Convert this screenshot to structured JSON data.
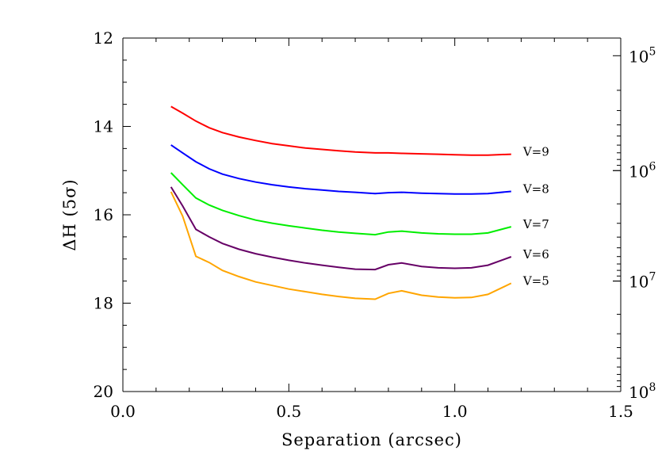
{
  "chart_data": {
    "type": "line",
    "xlabel": "Separation (arcsec)",
    "ylabel": "ΔH (5σ)",
    "xlim": [
      0.0,
      1.5
    ],
    "ylim": [
      12,
      20
    ],
    "y_inverted": true,
    "xticks": [
      "0.0",
      "0.5",
      "1.0",
      "1.5"
    ],
    "yticks": [
      "12",
      "14",
      "16",
      "18",
      "20"
    ],
    "right_axis": {
      "scale": "log",
      "tick_labels": [
        {
          "y": 12.4,
          "base": "10",
          "exp": "5"
        },
        {
          "y": 15.0,
          "base": "10",
          "exp": "6"
        },
        {
          "y": 17.5,
          "base": "10",
          "exp": "7"
        },
        {
          "y": 20.0,
          "base": "10",
          "exp": "8"
        }
      ]
    },
    "grid": false,
    "series": [
      {
        "name": "V=9",
        "color": "#ff0000",
        "x": [
          0.145,
          0.18,
          0.22,
          0.26,
          0.3,
          0.35,
          0.4,
          0.45,
          0.5,
          0.55,
          0.6,
          0.65,
          0.7,
          0.76,
          0.8,
          0.84,
          0.9,
          0.95,
          1.0,
          1.05,
          1.1,
          1.17
        ],
        "y": [
          13.55,
          13.7,
          13.88,
          14.03,
          14.14,
          14.24,
          14.32,
          14.39,
          14.44,
          14.49,
          14.52,
          14.55,
          14.58,
          14.6,
          14.6,
          14.61,
          14.62,
          14.63,
          14.64,
          14.65,
          14.65,
          14.63
        ]
      },
      {
        "name": "V=8",
        "color": "#0000ff",
        "x": [
          0.145,
          0.18,
          0.22,
          0.26,
          0.3,
          0.35,
          0.4,
          0.45,
          0.5,
          0.55,
          0.6,
          0.65,
          0.7,
          0.76,
          0.8,
          0.84,
          0.9,
          0.95,
          1.0,
          1.05,
          1.1,
          1.17
        ],
        "y": [
          14.42,
          14.6,
          14.8,
          14.96,
          15.08,
          15.18,
          15.26,
          15.32,
          15.37,
          15.41,
          15.44,
          15.47,
          15.49,
          15.52,
          15.5,
          15.49,
          15.51,
          15.52,
          15.53,
          15.53,
          15.52,
          15.47
        ]
      },
      {
        "name": "V=7",
        "color": "#00ee00",
        "x": [
          0.145,
          0.18,
          0.22,
          0.26,
          0.3,
          0.35,
          0.4,
          0.45,
          0.5,
          0.55,
          0.6,
          0.65,
          0.7,
          0.76,
          0.8,
          0.84,
          0.9,
          0.95,
          1.0,
          1.05,
          1.1,
          1.17
        ],
        "y": [
          15.05,
          15.32,
          15.62,
          15.78,
          15.9,
          16.02,
          16.12,
          16.19,
          16.25,
          16.3,
          16.35,
          16.39,
          16.42,
          16.45,
          16.39,
          16.37,
          16.41,
          16.43,
          16.44,
          16.44,
          16.41,
          16.27
        ]
      },
      {
        "name": "V=6",
        "color": "#660066",
        "x": [
          0.145,
          0.18,
          0.22,
          0.26,
          0.3,
          0.35,
          0.4,
          0.45,
          0.5,
          0.55,
          0.6,
          0.65,
          0.7,
          0.76,
          0.8,
          0.84,
          0.9,
          0.95,
          1.0,
          1.05,
          1.1,
          1.17
        ],
        "y": [
          15.37,
          15.8,
          16.33,
          16.5,
          16.65,
          16.78,
          16.88,
          16.96,
          17.03,
          17.09,
          17.14,
          17.19,
          17.23,
          17.24,
          17.13,
          17.09,
          17.17,
          17.2,
          17.21,
          17.2,
          17.14,
          16.95
        ]
      },
      {
        "name": "V=5",
        "color": "#ffa500",
        "x": [
          0.145,
          0.18,
          0.22,
          0.26,
          0.3,
          0.35,
          0.4,
          0.45,
          0.5,
          0.55,
          0.6,
          0.65,
          0.7,
          0.76,
          0.8,
          0.84,
          0.9,
          0.95,
          1.0,
          1.05,
          1.1,
          1.17
        ],
        "y": [
          15.48,
          16.03,
          16.94,
          17.08,
          17.26,
          17.4,
          17.52,
          17.6,
          17.68,
          17.74,
          17.8,
          17.85,
          17.89,
          17.91,
          17.78,
          17.72,
          17.82,
          17.86,
          17.88,
          17.87,
          17.8,
          17.55
        ]
      }
    ]
  }
}
